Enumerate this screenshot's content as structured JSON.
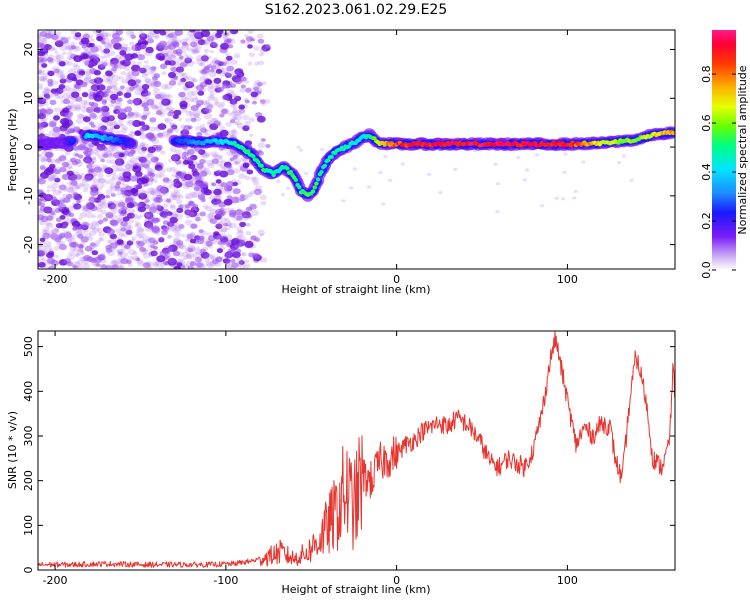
{
  "title": "S162.2023.061.02.29.E25",
  "colors": {
    "snr_line": "#e8352f",
    "dot_base": "#b27cf0",
    "dot_dark": "#6a12d9"
  },
  "colorbar": {
    "label": "Normalized spectral amplitude",
    "ticks": [
      "0.0",
      "0.2",
      "0.4",
      "0.6",
      "0.8"
    ],
    "tick_values": [
      0.0,
      0.2,
      0.4,
      0.6,
      0.8
    ],
    "range": [
      0,
      0.98
    ]
  },
  "chart_data": [
    {
      "type": "heatmap",
      "title": "",
      "xlabel": "Height of straight line (km)",
      "ylabel": "Frequency (Hz)",
      "xlim": [
        -210,
        163
      ],
      "ylim": [
        -25,
        24
      ],
      "xticks": [
        -200,
        -100,
        0,
        100
      ],
      "xtick_labels": [
        "-200",
        "-100",
        "0",
        "100"
      ],
      "yticks": [
        -20,
        -10,
        0,
        10,
        20
      ],
      "ytick_labels": [
        "-20",
        "-10",
        "0",
        "10",
        "20"
      ],
      "noise_region_x": [
        -210,
        -75
      ],
      "ridge": {
        "x": [
          -210,
          -195,
          -180,
          -165,
          -150,
          -130,
          -115,
          -105,
          -95,
          -85,
          -78,
          -72,
          -66,
          -60,
          -56,
          -52,
          -48,
          -44,
          -40,
          -36,
          -30,
          -24,
          -20,
          -16,
          -10,
          0,
          20,
          50,
          80,
          100,
          120,
          140,
          150,
          163
        ],
        "freq": [
          0.5,
          0.8,
          2.5,
          1.5,
          0.5,
          1.3,
          1.0,
          1.2,
          0.8,
          -1.5,
          -4.5,
          -5.5,
          -4.0,
          -6.0,
          -9.0,
          -10.0,
          -8.5,
          -5.0,
          -2.5,
          -1.0,
          0.0,
          1.0,
          2.0,
          2.5,
          0.8,
          0.6,
          0.6,
          0.6,
          0.6,
          0.6,
          0.8,
          1.5,
          2.5,
          3.0
        ],
        "amplitude": [
          0.15,
          0.15,
          0.45,
          0.3,
          0.15,
          0.25,
          0.35,
          0.4,
          0.5,
          0.55,
          0.55,
          0.5,
          0.5,
          0.55,
          0.55,
          0.55,
          0.55,
          0.5,
          0.5,
          0.5,
          0.5,
          0.45,
          0.45,
          0.5,
          0.7,
          0.9,
          0.95,
          0.95,
          0.95,
          0.95,
          0.7,
          0.6,
          0.7,
          0.8
        ]
      }
    },
    {
      "type": "line",
      "title": "",
      "xlabel": "Height of straight line (km)",
      "ylabel": "SNR (10 * v/v)",
      "xlim": [
        -210,
        163
      ],
      "ylim": [
        0,
        535
      ],
      "xticks": [
        -200,
        -100,
        0,
        100
      ],
      "xtick_labels": [
        "-200",
        "-100",
        "0",
        "100"
      ],
      "yticks": [
        0,
        100,
        200,
        300,
        400,
        500
      ],
      "ytick_labels": [
        "0",
        "100",
        "200",
        "300",
        "400",
        "500"
      ],
      "x": [
        -210,
        -190,
        -170,
        -150,
        -130,
        -110,
        -95,
        -85,
        -75,
        -68,
        -60,
        -52,
        -45,
        -40,
        -35,
        -30,
        -25,
        -20,
        -15,
        -10,
        -5,
        0,
        5,
        10,
        15,
        20,
        25,
        30,
        35,
        40,
        45,
        50,
        55,
        60,
        65,
        70,
        75,
        80,
        85,
        90,
        93,
        96,
        100,
        105,
        110,
        115,
        120,
        125,
        128,
        132,
        136,
        140,
        143,
        146,
        150,
        155,
        158,
        160,
        162,
        163
      ],
      "y": [
        12,
        12,
        14,
        12,
        12,
        12,
        14,
        20,
        30,
        40,
        25,
        40,
        70,
        100,
        130,
        180,
        140,
        210,
        200,
        240,
        250,
        260,
        280,
        290,
        310,
        320,
        330,
        320,
        340,
        330,
        310,
        280,
        240,
        230,
        250,
        240,
        230,
        270,
        350,
        470,
        520,
        460,
        380,
        280,
        320,
        300,
        330,
        320,
        250,
        200,
        360,
        480,
        440,
        380,
        250,
        230,
        260,
        300,
        470,
        340
      ]
    }
  ]
}
